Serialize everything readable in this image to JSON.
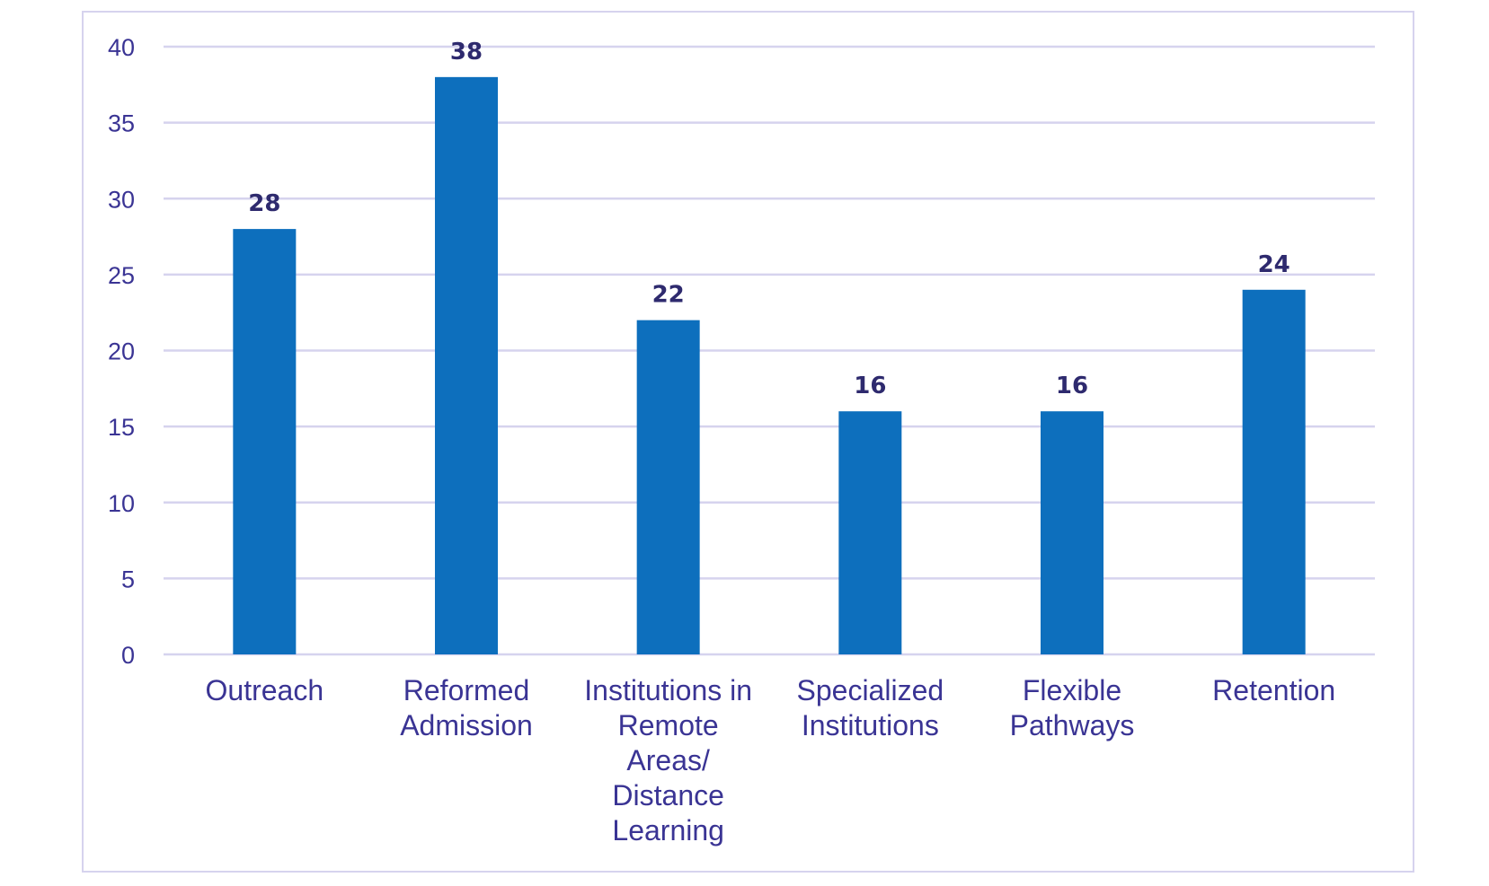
{
  "chart_data": {
    "type": "bar",
    "categories": [
      [
        "Outreach"
      ],
      [
        "Reformed",
        "Admission"
      ],
      [
        "Institutions in",
        "Remote",
        "Areas/",
        "Distance",
        "Learning"
      ],
      [
        "Specialized",
        "Institutions"
      ],
      [
        "Flexible",
        "Pathways"
      ],
      [
        "Retention"
      ]
    ],
    "values": [
      28,
      38,
      22,
      16,
      16,
      24
    ],
    "data_labels": [
      "28",
      "38",
      "22",
      "16",
      "16",
      "24"
    ],
    "ylim": [
      0,
      40
    ],
    "yticks": [
      0,
      5,
      10,
      15,
      20,
      25,
      30,
      35,
      40
    ],
    "grid": true,
    "bar_color": "#0d6fbd",
    "grid_color": "#d6d3ee",
    "text_color": "#3a3494"
  }
}
